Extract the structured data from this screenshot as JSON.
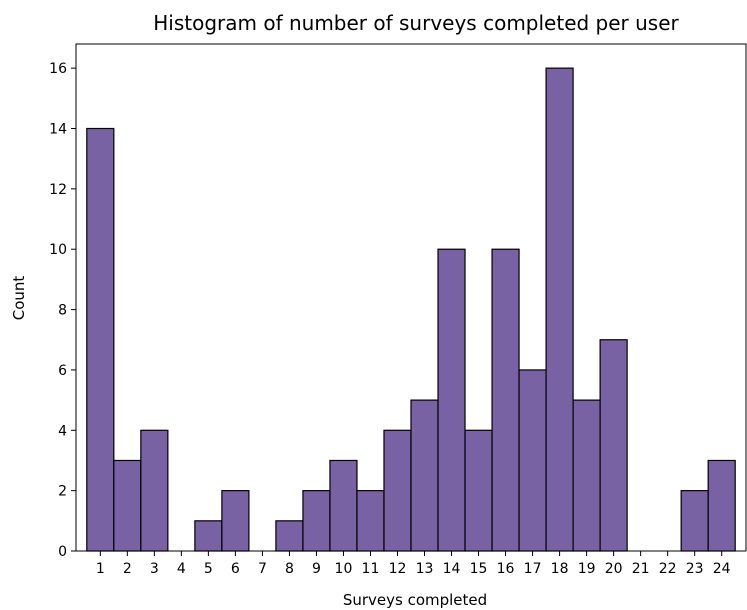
{
  "chart_data": {
    "type": "bar",
    "title": "Histogram of number of surveys completed per user",
    "xlabel": "Surveys completed",
    "ylabel": "Count",
    "categories": [
      "1",
      "2",
      "3",
      "4",
      "5",
      "6",
      "7",
      "8",
      "9",
      "10",
      "11",
      "12",
      "13",
      "14",
      "15",
      "16",
      "17",
      "18",
      "19",
      "20",
      "21",
      "22",
      "23",
      "24"
    ],
    "values": [
      14,
      3,
      4,
      0,
      1,
      2,
      0,
      1,
      2,
      3,
      2,
      4,
      5,
      10,
      4,
      10,
      6,
      16,
      5,
      7,
      0,
      0,
      2,
      3
    ],
    "yticks": [
      0,
      2,
      4,
      6,
      8,
      10,
      12,
      14,
      16
    ],
    "ylim": [
      0,
      16.8
    ],
    "xlim": [
      0.1,
      24.9
    ],
    "grid": false,
    "bar_color": "#7962a3",
    "edge_color": "#000000"
  }
}
